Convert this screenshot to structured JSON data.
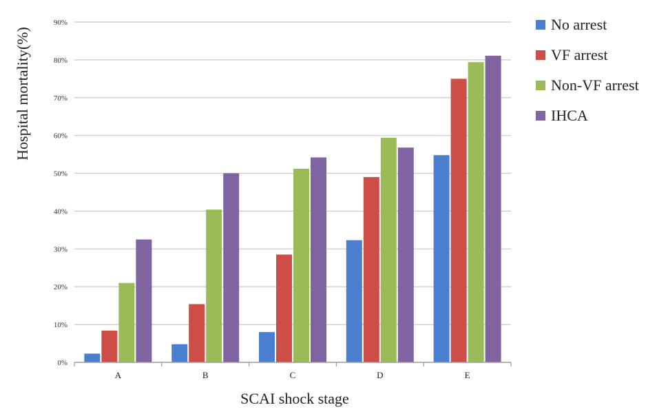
{
  "chart_data": {
    "type": "bar",
    "title": "",
    "xlabel": "SCAI shock stage",
    "ylabel": "Hospital mortality(%)",
    "categories": [
      "A",
      "B",
      "C",
      "D",
      "E"
    ],
    "ylim": [
      0,
      90
    ],
    "yticks": [
      "0%",
      "10%",
      "20%",
      "30%",
      "40%",
      "50%",
      "60%",
      "70%",
      "80%",
      "90%"
    ],
    "grid": true,
    "legend_position": "right",
    "series": [
      {
        "name": "No arrest",
        "color": "#4a7fd0",
        "values": [
          2.3,
          4.8,
          8.0,
          32.3,
          54.8
        ]
      },
      {
        "name": "VF arrest",
        "color": "#cc4e46",
        "values": [
          8.4,
          15.4,
          28.5,
          49.0,
          75.0
        ]
      },
      {
        "name": "Non-VF arrest",
        "color": "#9bbb59",
        "values": [
          21.0,
          40.4,
          51.2,
          59.4,
          79.4
        ]
      },
      {
        "name": "IHCA",
        "color": "#8064a2",
        "values": [
          32.5,
          50.0,
          54.2,
          56.8,
          81.1
        ]
      }
    ]
  }
}
